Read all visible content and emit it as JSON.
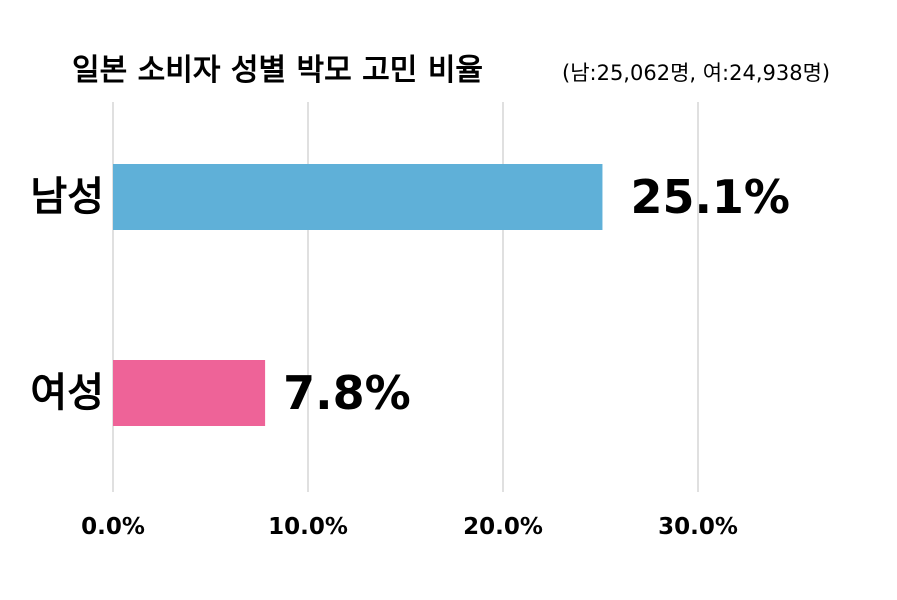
{
  "chart_data": {
    "type": "bar",
    "orientation": "horizontal",
    "title": "일본 소비자 성별 박모 고민 비율",
    "subtitle": "(남:25,062명, 여:24,938명)",
    "categories": [
      "남성",
      "여성"
    ],
    "values": [
      25.1,
      7.8
    ],
    "value_labels": [
      "25.1%",
      "7.8%"
    ],
    "bar_colors": [
      "#5fb0d8",
      "#ee6398"
    ],
    "xlim": [
      0,
      30
    ],
    "x_ticks": [
      0,
      10,
      20,
      30
    ],
    "x_tick_labels": [
      "0.0%",
      "10.0%",
      "20.0%",
      "30.0%"
    ],
    "grid": true,
    "legend": "none",
    "xlabel": "",
    "ylabel": ""
  }
}
